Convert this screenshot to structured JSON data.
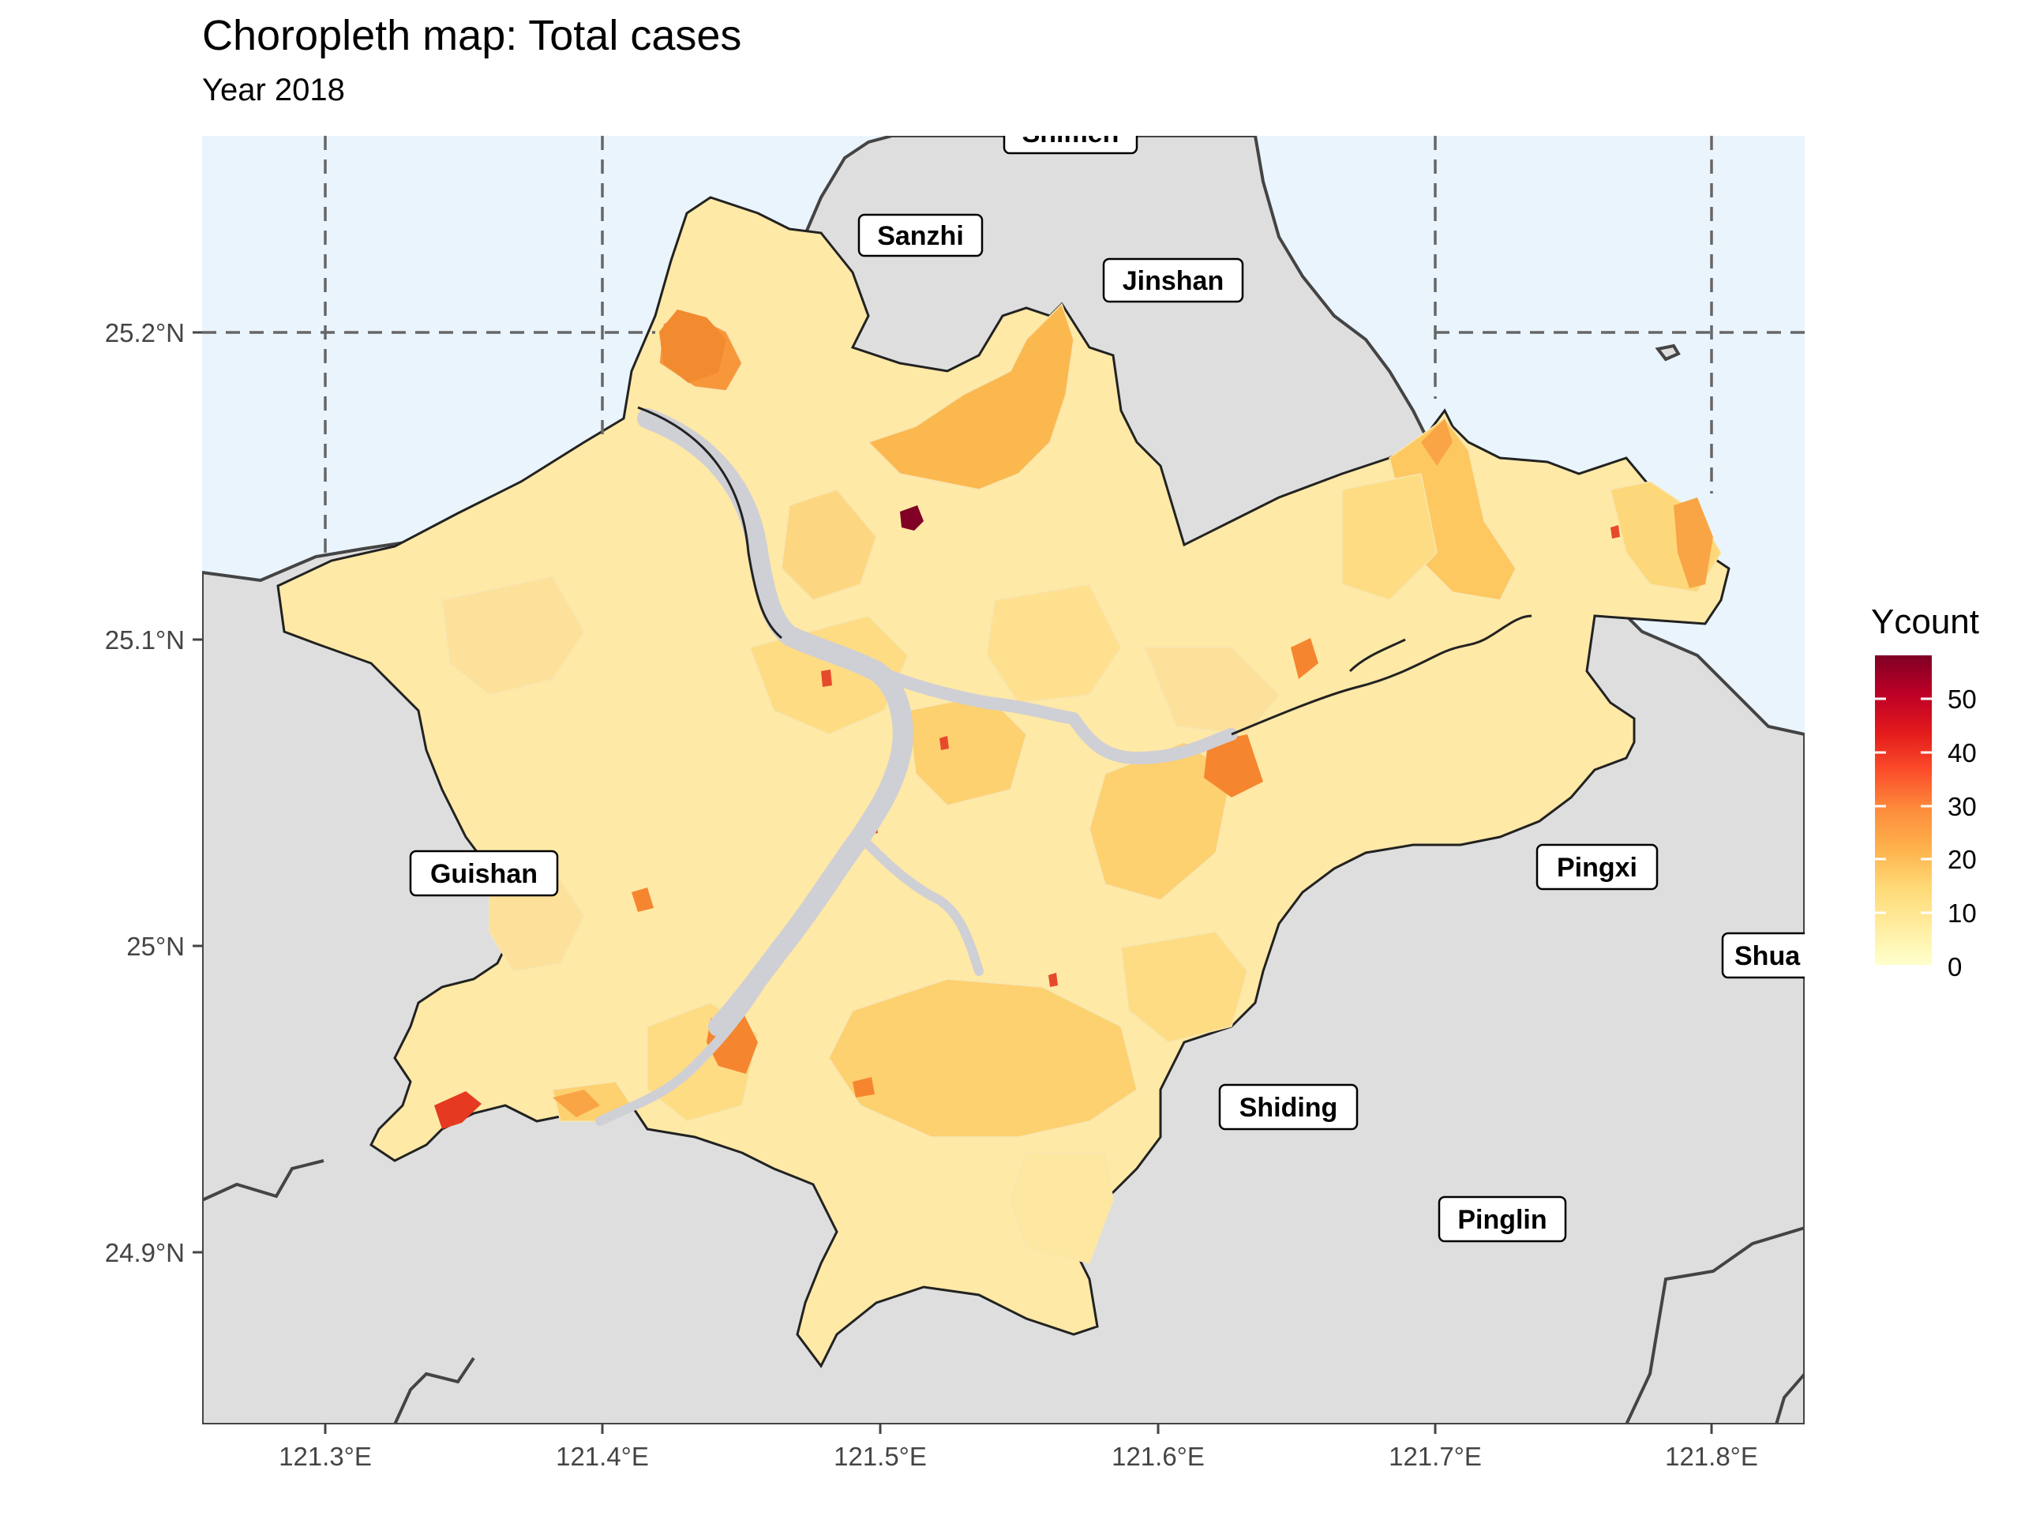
{
  "title": "Choropleth map: Total cases",
  "subtitle": "Year 2018",
  "x_axis": {
    "ticks": [
      "121.3°E",
      "121.4°E",
      "121.5°E",
      "121.6°E",
      "121.7°E",
      "121.8°E"
    ]
  },
  "y_axis": {
    "ticks": [
      "25.2°N",
      "25.1°N",
      "25°N",
      "24.9°N"
    ]
  },
  "places": [
    "Shimen",
    "Sanzhi",
    "Jinshan",
    "Guishan",
    "Pingxi",
    "Shua",
    "Shiding",
    "Pinglin"
  ],
  "legend": {
    "title": "Ycount",
    "ticks": [
      "50",
      "40",
      "30",
      "20",
      "10",
      "0"
    ],
    "scale_min": 0,
    "scale_max": 57,
    "colors": [
      "#ffffcc",
      "#ffeda0",
      "#fed976",
      "#feb24c",
      "#fd8d3c",
      "#fc4e2a",
      "#e31a1c",
      "#bd0026",
      "#800026"
    ]
  },
  "colors": {
    "sea": "#eaf4fd",
    "land": "#dedede",
    "river": "#cfcfd6",
    "grid": "#666666"
  }
}
